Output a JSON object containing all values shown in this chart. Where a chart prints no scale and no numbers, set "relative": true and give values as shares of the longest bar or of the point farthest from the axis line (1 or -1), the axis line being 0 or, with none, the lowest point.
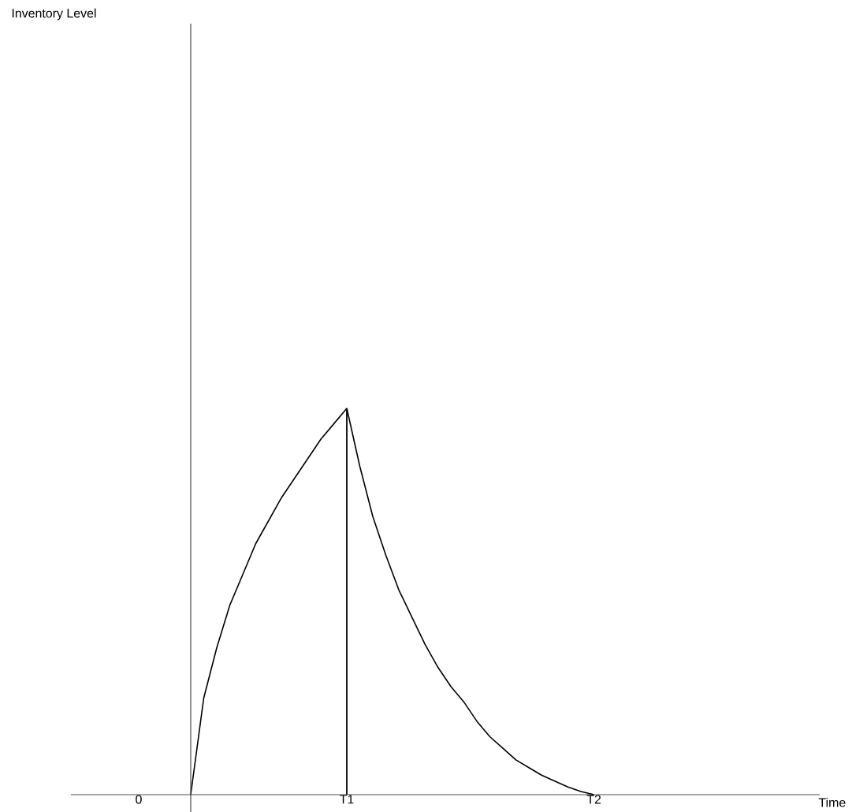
{
  "chart_data": {
    "type": "line",
    "relative": true,
    "marker": "none",
    "line_style": "solid",
    "annotations": [
      "Inventory Level",
      "Time"
    ],
    "categories": [
      "0",
      null,
      null,
      null,
      null,
      null,
      null,
      null,
      null,
      null,
      null,
      null,
      null,
      null,
      null,
      null,
      "T1",
      null,
      null,
      null,
      null,
      null,
      null,
      null,
      null,
      null,
      null,
      null,
      null,
      null,
      null,
      null,
      null,
      null,
      null,
      "T2"
    ],
    "series": [
      {
        "color": "#000000",
        "values": [
          null,
          null,
          null,
          null,
          0,
          0.25,
          0.38,
          0.49,
          0.57,
          0.65,
          0.71,
          0.77,
          0.82,
          0.87,
          0.92,
          0.96,
          1,
          0.85,
          0.72,
          0.62,
          0.53,
          0.46,
          0.39,
          0.33,
          0.28,
          0.24,
          0.19,
          0.15,
          0.12,
          0.09,
          0.07,
          0.05,
          0.035,
          0.02,
          0.008,
          0
        ]
      },
      {
        "type": "bar",
        "color": "#000000",
        "values": [
          null,
          null,
          null,
          null,
          null,
          null,
          null,
          null,
          null,
          null,
          null,
          null,
          null,
          null,
          null,
          null,
          1,
          null,
          null,
          null,
          null,
          null,
          null,
          null,
          null,
          null,
          null,
          null,
          null,
          null,
          null,
          null,
          null,
          null,
          null,
          null
        ]
      }
    ]
  }
}
